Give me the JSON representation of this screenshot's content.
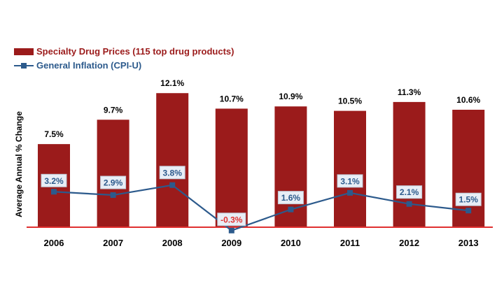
{
  "chart_data": {
    "type": "bar",
    "title": "",
    "xlabel": "",
    "ylabel": "Average Annual % Change",
    "categories": [
      "2006",
      "2007",
      "2008",
      "2009",
      "2010",
      "2011",
      "2012",
      "2013"
    ],
    "series": [
      {
        "name": "Specialty Drug Prices (115 top drug products)",
        "type": "bar",
        "color": "#9b1b1b",
        "values": [
          7.5,
          9.7,
          12.1,
          10.7,
          10.9,
          10.5,
          11.3,
          10.6
        ],
        "labels": [
          "7.5%",
          "9.7%",
          "12.1%",
          "10.7%",
          "10.9%",
          "10.5%",
          "11.3%",
          "10.6%"
        ]
      },
      {
        "name": "General Inflation (CPI-U)",
        "type": "line",
        "color": "#2c5a8c",
        "values": [
          3.2,
          2.9,
          3.8,
          -0.3,
          1.6,
          3.1,
          2.1,
          1.5
        ],
        "labels": [
          "3.2%",
          "2.9%",
          "3.8%",
          "-0.3%",
          "1.6%",
          "3.1%",
          "2.1%",
          "1.5%"
        ]
      }
    ],
    "baseline_color": "#e03030",
    "negative_label_color": "#e03030",
    "ylim": [
      -0.3,
      13
    ],
    "grid": false,
    "legend": "top-left"
  }
}
